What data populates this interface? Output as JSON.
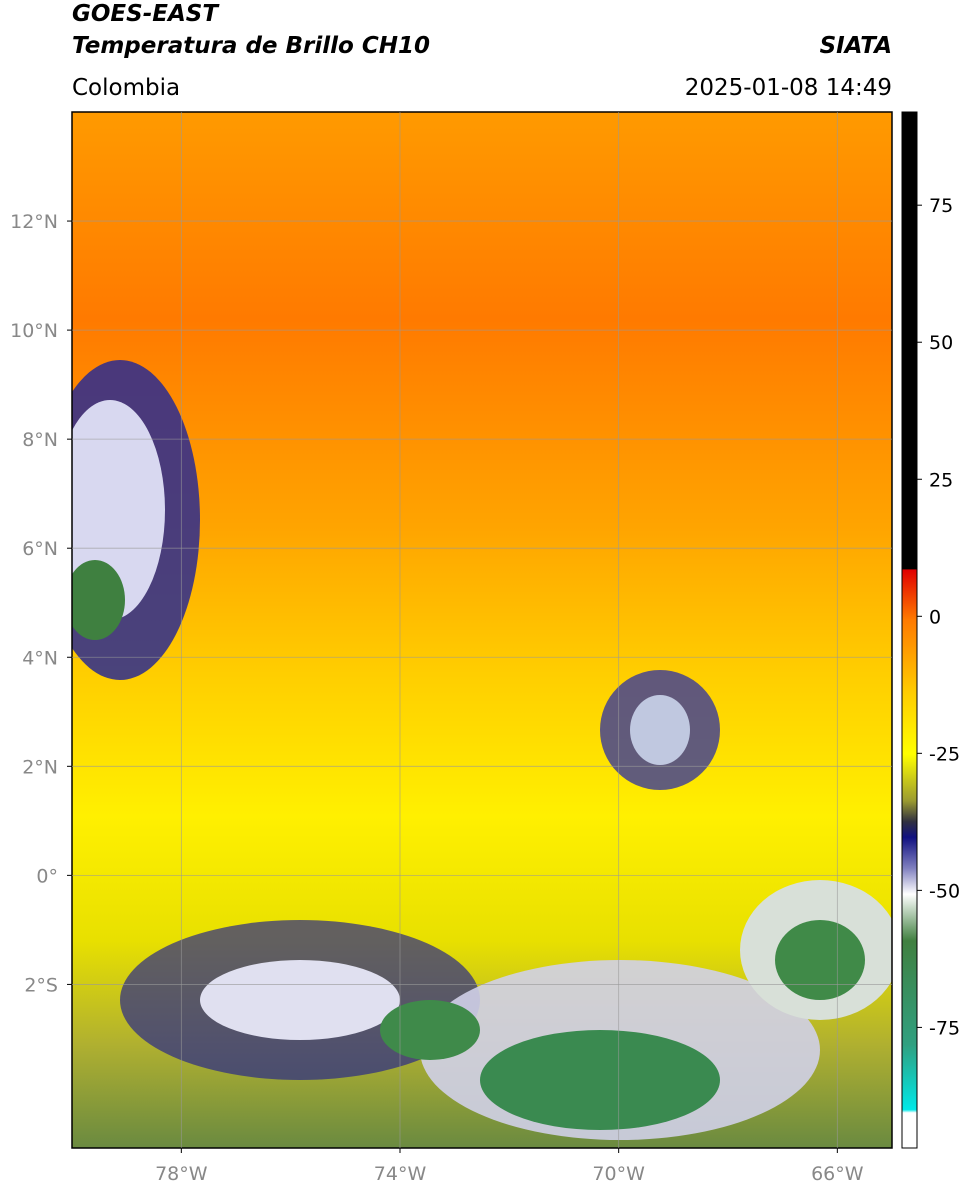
{
  "header": {
    "satellite": "GOES-EAST",
    "product": "Temperatura de Brillo CH10",
    "source": "SIATA",
    "region": "Colombia",
    "datetime": "2025-01-08 14:49"
  },
  "map": {
    "xlim": [
      -80,
      -65
    ],
    "ylim": [
      -5,
      14
    ],
    "xticks": [
      {
        "value": -78,
        "label": "78°W"
      },
      {
        "value": -74,
        "label": "74°W"
      },
      {
        "value": -70,
        "label": "70°W"
      },
      {
        "value": -66,
        "label": "66°W"
      }
    ],
    "yticks": [
      {
        "value": -2,
        "label": "2°S"
      },
      {
        "value": 0,
        "label": "0°"
      },
      {
        "value": 2,
        "label": "2°N"
      },
      {
        "value": 4,
        "label": "4°N"
      },
      {
        "value": 6,
        "label": "6°N"
      },
      {
        "value": 8,
        "label": "8°N"
      },
      {
        "value": 10,
        "label": "10°N"
      },
      {
        "value": 12,
        "label": "12°N"
      }
    ],
    "grid": true
  },
  "colorbar": {
    "lim": [
      -97,
      92
    ],
    "ticks": [
      75,
      50,
      25,
      0,
      -25,
      -50,
      -75
    ]
  }
}
